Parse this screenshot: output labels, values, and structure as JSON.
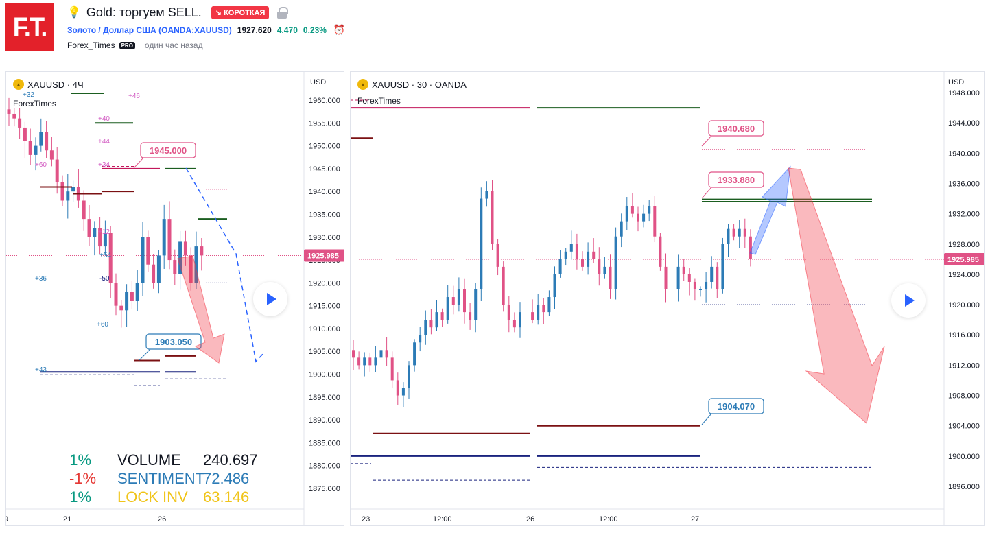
{
  "header": {
    "logo_text": "F.T.",
    "title": "Gold: торгуем SELL.",
    "badge": "↘ КОРОТКАЯ",
    "symbol_link": "Золото / Доллар США (OANDA:XAUUSD)",
    "price": "1927.620",
    "change": "4.470",
    "change_pct": "0.23%",
    "author": "Forex_Times",
    "author_badge": "PRO",
    "time_ago": "один час назад"
  },
  "colors": {
    "up": "#2c7bb6",
    "down": "#e05286",
    "short_badge": "#f23645",
    "positive": "#089981",
    "link": "#2962ff",
    "price_tag": "#e05286"
  },
  "left_chart": {
    "legend": "XAUUSD · 4Ч",
    "watermark": "ForexTimes",
    "currency": "USD",
    "current_price": "1925.985",
    "price_ticks": [
      "1960.000",
      "1955.000",
      "1950.000",
      "1945.000",
      "1940.000",
      "1935.000",
      "1930.000",
      "1925.000",
      "1920.000",
      "1915.000",
      "1910.000",
      "1905.000",
      "1900.000",
      "1895.000",
      "1890.000",
      "1885.000",
      "1880.000",
      "1875.000"
    ],
    "time_ticks": [
      "9",
      "21",
      "26"
    ],
    "callouts": [
      "1945.000",
      "1903.050"
    ],
    "small_labels": [
      "+32",
      "+46",
      "+40",
      "+44",
      "+60",
      "+34",
      "+12",
      "+54",
      "-50",
      "+36",
      "+60",
      "+43"
    ],
    "stats": [
      {
        "pct": "1%",
        "label": "VOLUME",
        "value": "240.697",
        "pct_color": "#089981",
        "label_color": "#131722"
      },
      {
        "pct": "-1%",
        "label": "SENTIMENT",
        "value": "72.486",
        "pct_color": "#e53935",
        "label_color": "#2c7bb6"
      },
      {
        "pct": "1%",
        "label": "LOCK INV",
        "value": "63.146",
        "pct_color": "#089981",
        "label_color": "#f0c419"
      }
    ]
  },
  "right_chart": {
    "legend": "XAUUSD · 30 · OANDA",
    "watermark": "ForexTimes",
    "currency": "USD",
    "current_price": "1925.985",
    "price_ticks": [
      "1948.000",
      "1944.000",
      "1940.000",
      "1936.000",
      "1932.000",
      "1928.000",
      "1924.000",
      "1920.000",
      "1916.000",
      "1912.000",
      "1908.000",
      "1904.000",
      "1900.000",
      "1896.000"
    ],
    "time_ticks": [
      "23",
      "12:00",
      "26",
      "12:00",
      "27"
    ],
    "callouts": [
      "1940.680",
      "1933.880",
      "1904.070"
    ]
  }
}
